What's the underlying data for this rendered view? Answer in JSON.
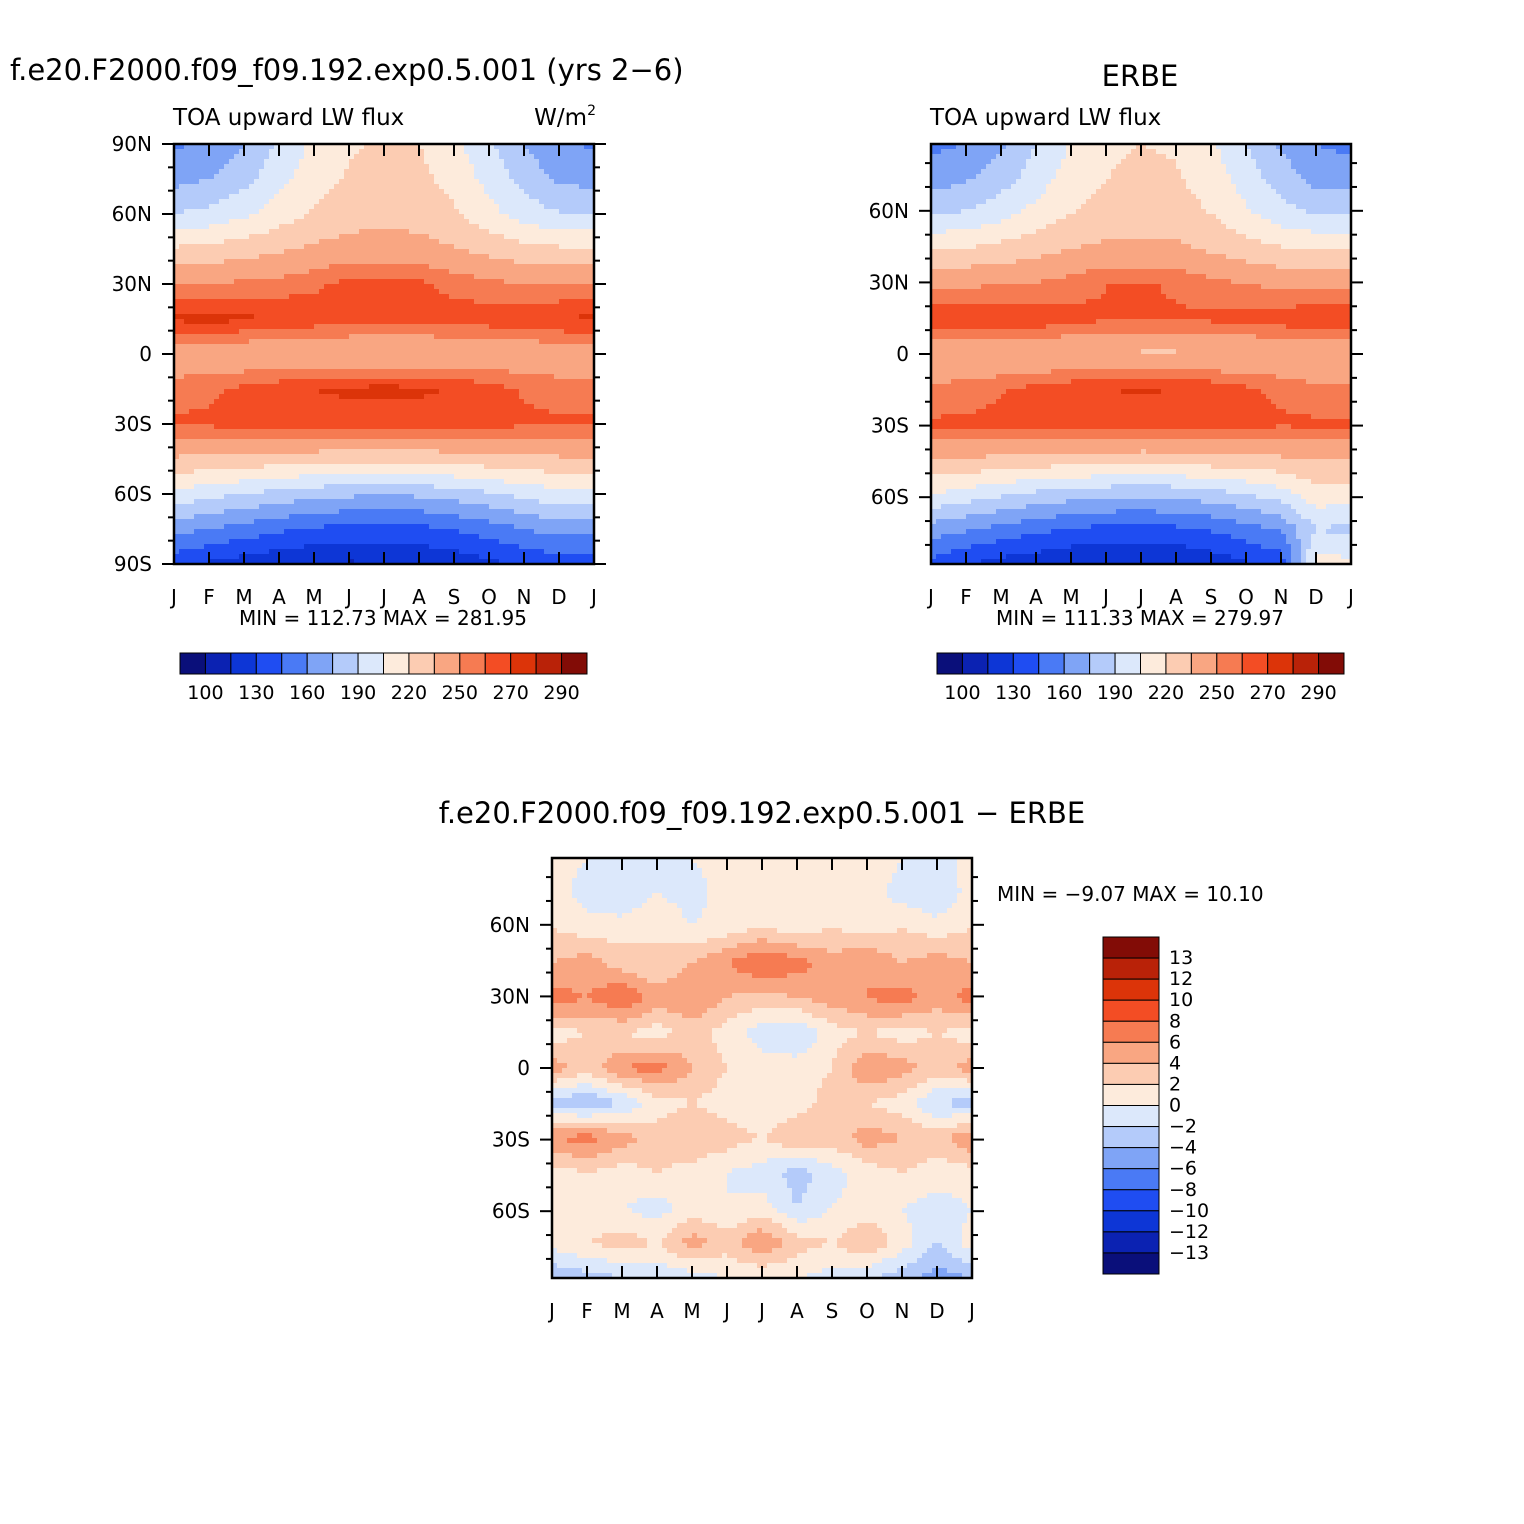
{
  "chart_data": [
    {
      "type": "heatmap",
      "title": "f.e20.F2000.f09_f09.192.exp0.5.001 (yrs 2−6)",
      "subtitle_left": "TOA upward LW flux",
      "subtitle_right": "W/m",
      "subtitle_right_sup": "2",
      "x_tick_labels": [
        "J",
        "F",
        "M",
        "A",
        "M",
        "J",
        "J",
        "A",
        "S",
        "O",
        "N",
        "D",
        "J"
      ],
      "y_tick_labels": [
        "90S",
        "60S",
        "30S",
        "0",
        "30N",
        "60N",
        "90N"
      ],
      "y_tick_values": [
        -90,
        -60,
        -30,
        0,
        30,
        60,
        90
      ],
      "ylim": [
        -90,
        90
      ],
      "x": [
        "Jan",
        "Feb",
        "Mar",
        "Apr",
        "May",
        "Jun",
        "Jul",
        "Aug",
        "Sep",
        "Oct",
        "Nov",
        "Dec",
        "Jan"
      ],
      "y": [
        -90,
        -75,
        -60,
        -45,
        -30,
        -15,
        0,
        15,
        30,
        45,
        60,
        75,
        90
      ],
      "z": [
        [
          135,
          128,
          122,
          118,
          114,
          113,
          114,
          116,
          120,
          126,
          132,
          136,
          135
        ],
        [
          165,
          160,
          154,
          148,
          143,
          140,
          139,
          141,
          146,
          152,
          160,
          166,
          165
        ],
        [
          200,
          195,
          190,
          185,
          181,
          178,
          176,
          178,
          182,
          188,
          195,
          200,
          200
        ],
        [
          233,
          232,
          230,
          228,
          227,
          226,
          225,
          226,
          228,
          229,
          231,
          233,
          233
        ],
        [
          262,
          262,
          263,
          264,
          265,
          265,
          264,
          264,
          263,
          263,
          262,
          262,
          262
        ],
        [
          255,
          258,
          262,
          266,
          270,
          272,
          273,
          272,
          269,
          264,
          259,
          255,
          255
        ],
        [
          240,
          239,
          238,
          238,
          238,
          237,
          236,
          236,
          237,
          238,
          239,
          240,
          240
        ],
        [
          272,
          273,
          272,
          270,
          266,
          263,
          262,
          263,
          264,
          266,
          268,
          271,
          272
        ],
        [
          250,
          251,
          252,
          254,
          258,
          263,
          264,
          262,
          257,
          253,
          250,
          249,
          250
        ],
        [
          222,
          224,
          228,
          233,
          238,
          241,
          242,
          241,
          236,
          230,
          225,
          222,
          222
        ],
        [
          190,
          194,
          202,
          212,
          222,
          228,
          230,
          228,
          222,
          210,
          198,
          191,
          190
        ],
        [
          170,
          175,
          185,
          200,
          214,
          222,
          226,
          224,
          215,
          200,
          185,
          172,
          170
        ],
        [
          158,
          162,
          175,
          192,
          208,
          218,
          222,
          220,
          210,
          192,
          175,
          162,
          158
        ]
      ],
      "stats": "MIN =  112.73 MAX =  281.95",
      "colorbar": {
        "labels": [
          "100",
          "130",
          "160",
          "190",
          "220",
          "250",
          "270",
          "290"
        ],
        "levels": [
          100,
          115,
          130,
          145,
          160,
          175,
          190,
          205,
          220,
          235,
          250,
          260,
          270,
          280,
          290
        ],
        "colors": [
          "#0a0f7a",
          "#0b22b2",
          "#0d36d6",
          "#1f4df2",
          "#4a7af5",
          "#7fa4f6",
          "#b4cbfa",
          "#dce8fb",
          "#fdebdc",
          "#fcccb2",
          "#f9a682",
          "#f67b52",
          "#f34d24",
          "#dc3409",
          "#b92208",
          "#820c06"
        ]
      }
    },
    {
      "type": "heatmap",
      "title": "ERBE",
      "subtitle_left": "TOA upward LW flux",
      "x_tick_labels": [
        "J",
        "F",
        "M",
        "A",
        "M",
        "J",
        "J",
        "A",
        "S",
        "O",
        "N",
        "D",
        "J"
      ],
      "y_tick_labels": [
        "60S",
        "30S",
        "0",
        "30N",
        "60N"
      ],
      "y_tick_values": [
        -60,
        -30,
        0,
        30,
        60
      ],
      "ylim": [
        -88,
        88
      ],
      "x": [
        "Jan",
        "Feb",
        "Mar",
        "Apr",
        "May",
        "Jun",
        "Jul",
        "Aug",
        "Sep",
        "Oct",
        "Nov",
        "Dec",
        "Jan"
      ],
      "y": [
        -88,
        -75,
        -60,
        -45,
        -30,
        -15,
        0,
        15,
        30,
        45,
        60,
        75,
        88
      ],
      "z": [
        [
          140,
          130,
          124,
          120,
          116,
          114,
          114,
          116,
          120,
          128,
          136,
          210,
          210
        ],
        [
          168,
          162,
          155,
          149,
          144,
          141,
          140,
          142,
          147,
          154,
          162,
          190,
          185
        ],
        [
          205,
          199,
          193,
          187,
          183,
          180,
          178,
          180,
          184,
          190,
          198,
          215,
          212
        ],
        [
          235,
          234,
          232,
          230,
          229,
          228,
          227,
          228,
          230,
          231,
          233,
          236,
          235
        ],
        [
          262,
          262,
          263,
          264,
          265,
          265,
          264,
          264,
          263,
          263,
          262,
          262,
          262
        ],
        [
          252,
          255,
          259,
          263,
          267,
          270,
          271,
          270,
          267,
          262,
          257,
          252,
          252
        ],
        [
          238,
          236,
          235,
          235,
          235,
          234,
          233,
          233,
          234,
          235,
          236,
          238,
          238
        ],
        [
          270,
          271,
          270,
          268,
          264,
          261,
          260,
          261,
          262,
          264,
          266,
          269,
          270
        ],
        [
          247,
          248,
          249,
          251,
          255,
          260,
          261,
          259,
          254,
          250,
          247,
          246,
          247
        ],
        [
          219,
          221,
          225,
          230,
          235,
          238,
          239,
          238,
          233,
          227,
          222,
          219,
          219
        ],
        [
          188,
          192,
          200,
          210,
          220,
          226,
          228,
          226,
          220,
          208,
          196,
          189,
          188
        ],
        [
          168,
          173,
          183,
          198,
          212,
          220,
          224,
          222,
          213,
          198,
          183,
          170,
          168
        ],
        [
          156,
          160,
          173,
          190,
          206,
          216,
          220,
          218,
          208,
          190,
          173,
          160,
          156
        ]
      ],
      "stats": "MIN =  111.33 MAX =  279.97",
      "colorbar": {
        "labels": [
          "100",
          "130",
          "160",
          "190",
          "220",
          "250",
          "270",
          "290"
        ],
        "levels": [
          100,
          115,
          130,
          145,
          160,
          175,
          190,
          205,
          220,
          235,
          250,
          260,
          270,
          280,
          290
        ],
        "colors": [
          "#0a0f7a",
          "#0b22b2",
          "#0d36d6",
          "#1f4df2",
          "#4a7af5",
          "#7fa4f6",
          "#b4cbfa",
          "#dce8fb",
          "#fdebdc",
          "#fcccb2",
          "#f9a682",
          "#f67b52",
          "#f34d24",
          "#dc3409",
          "#b92208",
          "#820c06"
        ]
      }
    },
    {
      "type": "heatmap",
      "title": "f.e20.F2000.f09_f09.192.exp0.5.001 − ERBE",
      "x_tick_labels": [
        "J",
        "F",
        "M",
        "A",
        "M",
        "J",
        "J",
        "A",
        "S",
        "O",
        "N",
        "D",
        "J"
      ],
      "y_tick_labels": [
        "60S",
        "30S",
        "0",
        "30N",
        "60N"
      ],
      "y_tick_values": [
        -60,
        -30,
        0,
        30,
        60
      ],
      "ylim": [
        -88,
        88
      ],
      "x": [
        "Jan",
        "Feb",
        "Mar",
        "Apr",
        "May",
        "Jun",
        "Jul",
        "Aug",
        "Sep",
        "Oct",
        "Nov",
        "Dec",
        "Jan"
      ],
      "y": [
        -88,
        -75,
        -60,
        -45,
        -30,
        -15,
        0,
        15,
        30,
        45,
        60,
        75,
        88
      ],
      "z": [
        [
          -4,
          -3,
          -2,
          -2,
          -1,
          0,
          0,
          0,
          -1,
          -2,
          -3,
          -5,
          -4
        ],
        [
          1,
          2,
          3,
          2,
          5,
          3,
          6,
          3,
          2,
          4,
          1,
          -2,
          1
        ],
        [
          0,
          1,
          0,
          -1,
          1,
          0,
          1,
          -2,
          0,
          1,
          0,
          -1,
          0
        ],
        [
          1,
          2,
          1,
          2,
          1,
          0,
          -1,
          -3,
          -1,
          1,
          2,
          1,
          1
        ],
        [
          6,
          7,
          5,
          3,
          4,
          3,
          2,
          4,
          3,
          5,
          4,
          3,
          6
        ],
        [
          -3,
          -4,
          -2,
          1,
          2,
          1,
          0,
          1,
          3,
          2,
          1,
          -2,
          -3
        ],
        [
          5,
          3,
          6,
          7,
          4,
          2,
          1,
          1,
          2,
          6,
          5,
          3,
          5
        ],
        [
          1,
          2,
          2,
          1,
          3,
          1,
          -1,
          -2,
          1,
          2,
          1,
          2,
          1
        ],
        [
          7,
          6,
          8,
          5,
          6,
          4,
          3,
          4,
          5,
          6,
          7,
          5,
          7
        ],
        [
          4,
          5,
          3,
          2,
          4,
          6,
          8,
          7,
          5,
          6,
          4,
          5,
          4
        ],
        [
          2,
          1,
          1,
          2,
          0,
          1,
          2,
          1,
          2,
          1,
          2,
          1,
          2
        ],
        [
          1,
          -1,
          -2,
          0,
          -1,
          1,
          2,
          1,
          0,
          1,
          -1,
          -2,
          1
        ],
        [
          1,
          0,
          -2,
          -1,
          0,
          1,
          1,
          0,
          1,
          2,
          0,
          -1,
          1
        ]
      ],
      "stats": "MIN =   −9.07 MAX =   10.10",
      "colorbar": {
        "labels": [
          "13",
          "12",
          "10",
          "8",
          "6",
          "4",
          "2",
          "0",
          "−2",
          "−4",
          "−6",
          "−8",
          "−10",
          "−12",
          "−13"
        ],
        "levels": [
          -13,
          -12,
          -10,
          -8,
          -6,
          -4,
          -2,
          0,
          2,
          4,
          6,
          8,
          10,
          12,
          13
        ],
        "colors": [
          "#0a0f7a",
          "#0b22b2",
          "#0d36d6",
          "#1f4df2",
          "#4a7af5",
          "#7fa4f6",
          "#b4cbfa",
          "#dce8fb",
          "#fdebdc",
          "#fcccb2",
          "#f9a682",
          "#f67b52",
          "#f34d24",
          "#dc3409",
          "#b92208",
          "#820c06"
        ]
      }
    }
  ]
}
